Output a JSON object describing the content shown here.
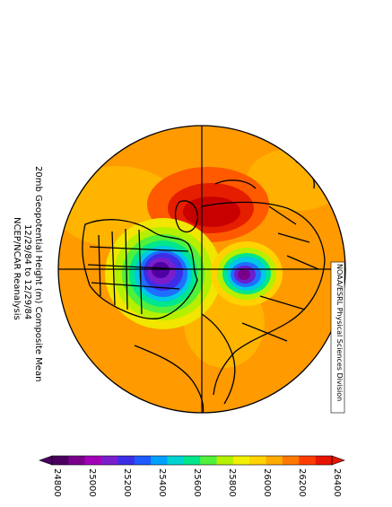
{
  "title": {
    "line1": "20mb Geopotential Height (m) Composite Mean",
    "line2": "12/29/84  to  12/29/84",
    "line3": "NCEP/NCAR Reanalysis"
  },
  "credit": "NOAA/ESRL Physical Sciences Division",
  "colorbar": {
    "labels": [
      "24800",
      "25000",
      "25200",
      "25400",
      "25600",
      "25800",
      "26000",
      "26200",
      "26400"
    ],
    "colors": [
      "#4b0060",
      "#7a008c",
      "#a400b8",
      "#7a1ecc",
      "#3c2ee6",
      "#1e5aff",
      "#00a0ff",
      "#00d2d2",
      "#00e68c",
      "#50f03c",
      "#b4f000",
      "#f0f000",
      "#ffd200",
      "#ffaa00",
      "#ff7800",
      "#ff3c00",
      "#e61400"
    ]
  },
  "map": {
    "projection": "polar-stereographic",
    "background_level_color": "#ff9600",
    "high_center_color": "#c80000",
    "low_center_colors": [
      "#5000a0",
      "#7000c0"
    ]
  }
}
